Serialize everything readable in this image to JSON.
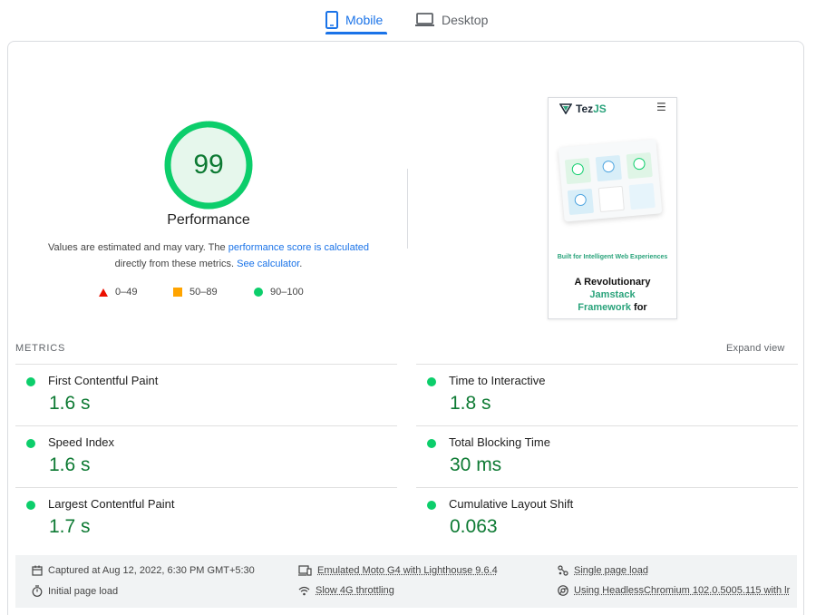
{
  "tabs": {
    "mobile_label": "Mobile",
    "desktop_label": "Desktop",
    "active": "Mobile"
  },
  "summary": {
    "score": "99",
    "title": "Performance",
    "desc_prefix": "Values are estimated and may vary. The ",
    "desc_link1": "performance score is calculated",
    "desc_middle": " directly from these metrics. ",
    "desc_link2": "See calculator",
    "desc_suffix": ".",
    "legend": {
      "fail": "0–49",
      "average": "50–89",
      "pass": "90–100"
    },
    "score_fraction": 0.99
  },
  "screenshot": {
    "logo_text_a": "Tez",
    "logo_text_b": "JS",
    "tagline": "Built for Intelligent Web Experiences",
    "heading_line1": "A Revolutionary",
    "heading_line2": "Jamstack",
    "heading_line3a": "Framework",
    "heading_line3b": " for"
  },
  "metrics": {
    "section_label": "METRICS",
    "expand_label": "Expand view",
    "items": [
      {
        "title": "First Contentful Paint",
        "value": "1.6 s"
      },
      {
        "title": "Time to Interactive",
        "value": "1.8 s"
      },
      {
        "title": "Speed Index",
        "value": "1.6 s"
      },
      {
        "title": "Total Blocking Time",
        "value": "30 ms"
      },
      {
        "title": "Largest Contentful Paint",
        "value": "1.7 s"
      },
      {
        "title": "Cumulative Layout Shift",
        "value": "0.063"
      }
    ]
  },
  "info": {
    "captured": "Captured at Aug 12, 2022, 6:30 PM GMT+5:30",
    "initial_load": "Initial page load",
    "device": "Emulated Moto G4 with Lighthouse 9.6.4",
    "throttling": "Slow 4G throttling",
    "page_load": "Single page load",
    "browser": "Using HeadlessChromium 102.0.5005.115 with lr"
  },
  "colors": {
    "accent": "#1a73e8",
    "pass": "#0cce6b",
    "pass_text": "#0d7a33",
    "average": "#ffa400",
    "fail": "#eb0f00"
  }
}
